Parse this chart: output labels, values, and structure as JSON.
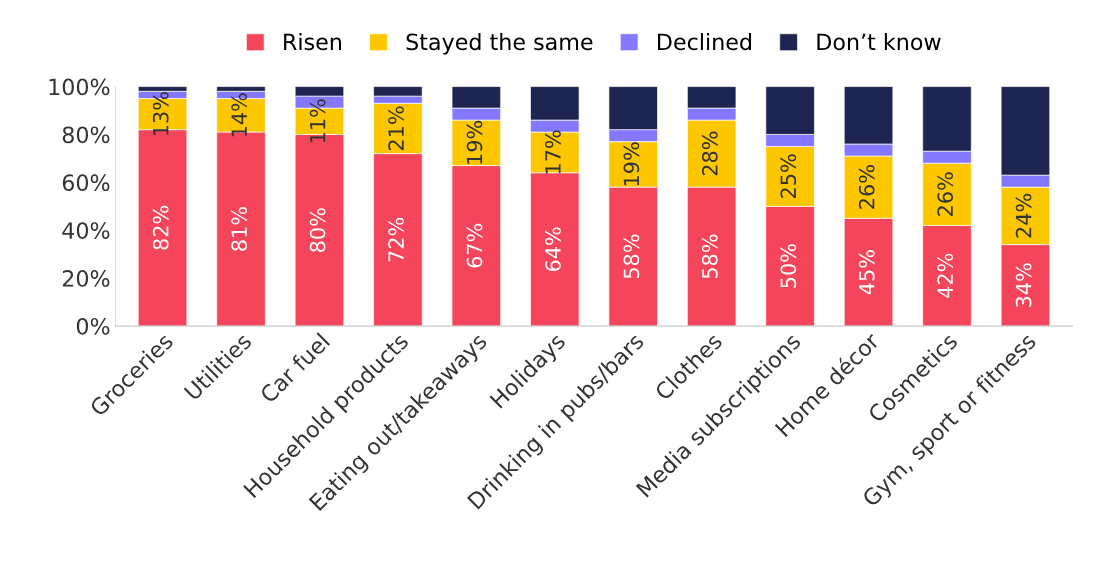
{
  "chart_data": {
    "type": "bar",
    "stacked": true,
    "categories": [
      "Groceries",
      "Utilities",
      "Car fuel",
      "Household products",
      "Eating out/takeaways",
      "Holidays",
      "Drinking in pubs/bars",
      "Clothes",
      "Media subscriptions",
      "Home décor",
      "Cosmetics",
      "Gym, sport or fitness"
    ],
    "series": [
      {
        "name": "Risen",
        "color": "#f5455a",
        "values": [
          82,
          81,
          80,
          72,
          67,
          64,
          58,
          58,
          50,
          45,
          42,
          34
        ],
        "value_labels": [
          "82%",
          "81%",
          "80%",
          "72%",
          "67%",
          "64%",
          "58%",
          "58%",
          "50%",
          "45%",
          "42%",
          "34%"
        ]
      },
      {
        "name": "Stayed the same",
        "color": "#fdc700",
        "values": [
          13,
          14,
          11,
          21,
          19,
          17,
          19,
          28,
          25,
          26,
          26,
          24
        ],
        "value_labels": [
          "13%",
          "14%",
          "11%",
          "21%",
          "19%",
          "17%",
          "19%",
          "28%",
          "25%",
          "26%",
          "26%",
          "24%"
        ]
      },
      {
        "name": "Declined",
        "color": "#8378ff",
        "values": [
          3,
          3,
          5,
          3,
          5,
          5,
          5,
          5,
          5,
          5,
          5,
          5
        ]
      },
      {
        "name": "Don’t know",
        "color": "#1f2551",
        "values": [
          2,
          2,
          4,
          4,
          9,
          14,
          18,
          9,
          20,
          24,
          27,
          37
        ]
      }
    ],
    "ylim": [
      0,
      100
    ],
    "yticks": [
      {
        "value": 0,
        "label": "0%"
      },
      {
        "value": 20,
        "label": "20%"
      },
      {
        "value": 40,
        "label": "40%"
      },
      {
        "value": 60,
        "label": "60%"
      },
      {
        "value": 80,
        "label": "80%"
      },
      {
        "value": 100,
        "label": "100%"
      }
    ],
    "grid": false,
    "legend": "top"
  }
}
